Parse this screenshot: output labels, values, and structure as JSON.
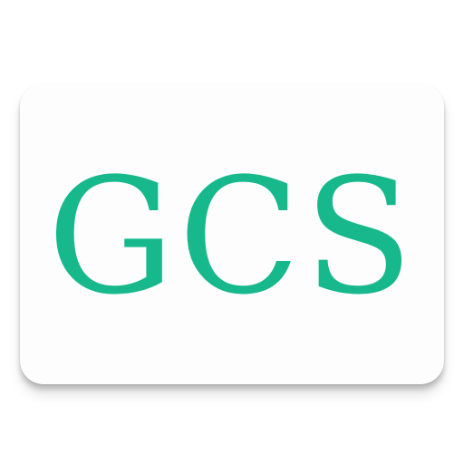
{
  "app_icon": {
    "logo_text": "GCS",
    "colors": {
      "card_background": "#fdfdfd",
      "logo_text": "#17b98c"
    }
  }
}
